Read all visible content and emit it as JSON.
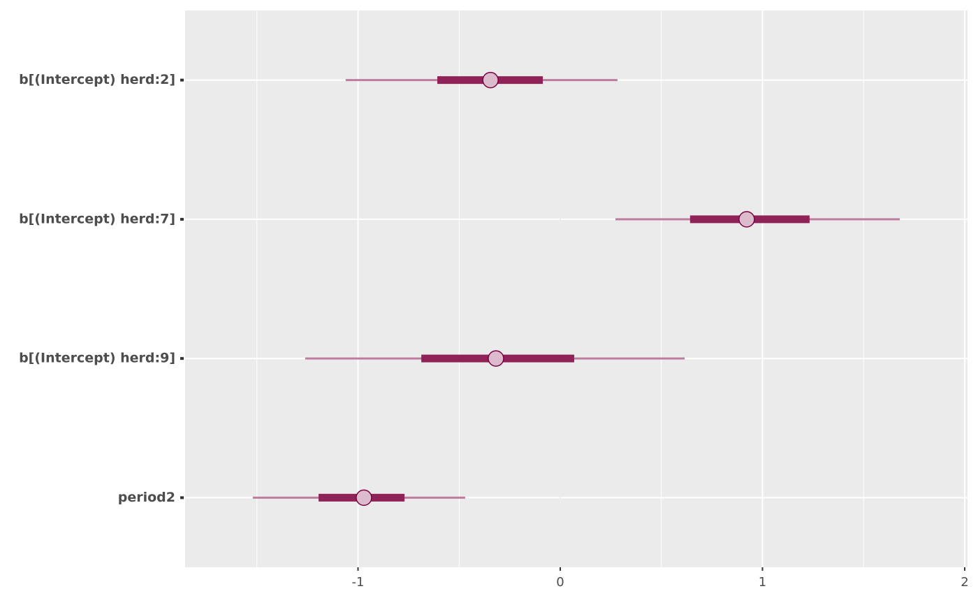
{
  "chart_data": {
    "type": "intervals",
    "categories": [
      "b[(Intercept) herd:2]",
      "b[(Intercept) herd:7]",
      "b[(Intercept) herd:9]",
      "period2"
    ],
    "ll": [
      -1.061,
      0.273,
      -1.261,
      -1.52
    ],
    "l": [
      -0.608,
      0.642,
      -0.687,
      -1.195
    ],
    "m": [
      -0.345,
      0.922,
      -0.318,
      -0.971
    ],
    "h": [
      -0.086,
      1.233,
      0.069,
      -0.77
    ],
    "hh": [
      0.283,
      1.679,
      0.615,
      -0.47
    ],
    "outer_color": "#be7d9f",
    "inner_color": "#8f2257",
    "point_fill": "#dcbccc",
    "point_stroke": "#7b0045",
    "xlim": [
      -1.855,
      2.014
    ],
    "xticks": [
      -1,
      0,
      1,
      2
    ],
    "minor_xticks": [
      -1.5,
      -0.5,
      0.5,
      1.5
    ],
    "ref_line": 0,
    "grid": true
  }
}
